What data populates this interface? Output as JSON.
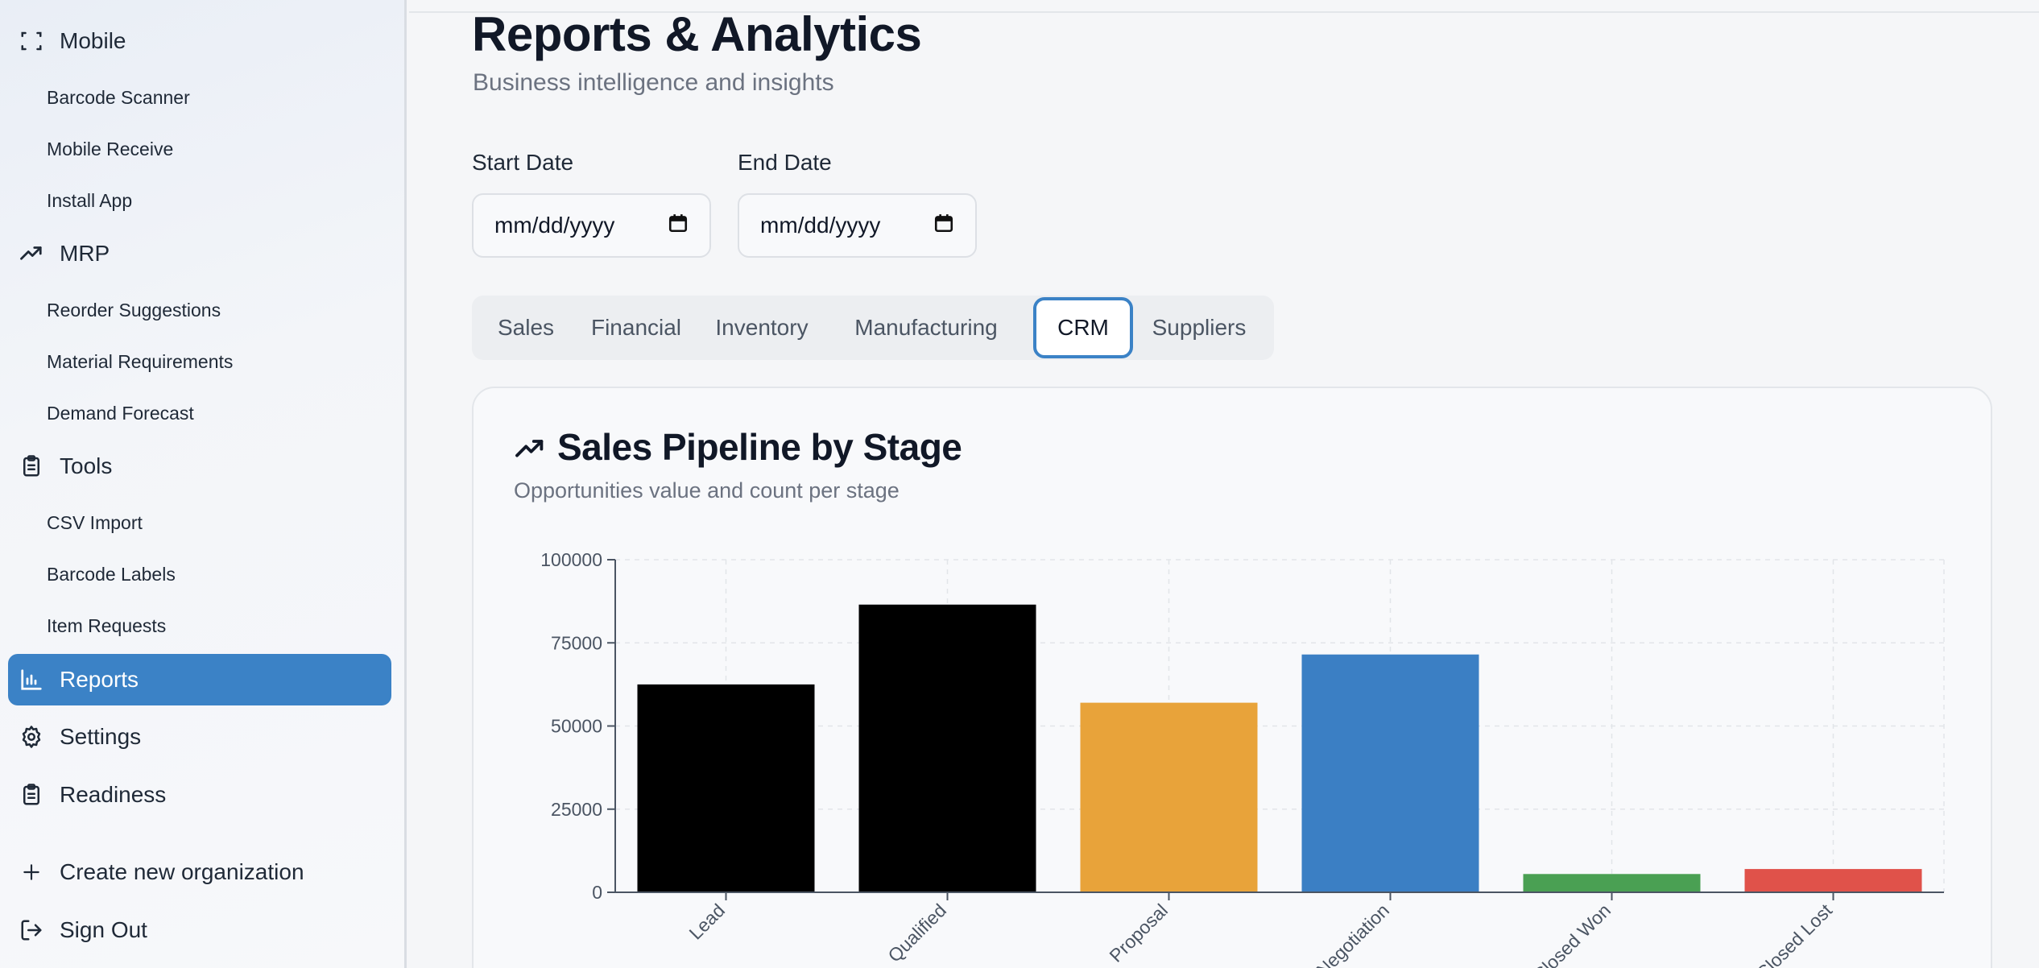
{
  "sidebar": {
    "groups": [
      {
        "label": "Mobile",
        "icon": "scan-icon",
        "items": [
          "Barcode Scanner",
          "Mobile Receive",
          "Install App"
        ]
      },
      {
        "label": "MRP",
        "icon": "trending-up-icon",
        "items": [
          "Reorder Suggestions",
          "Material Requirements",
          "Demand Forecast"
        ]
      },
      {
        "label": "Tools",
        "icon": "clipboard-icon",
        "items": [
          "CSV Import",
          "Barcode Labels",
          "Item Requests"
        ]
      }
    ],
    "reports_label": "Reports",
    "settings_label": "Settings",
    "readiness_label": "Readiness",
    "create_org_label": "Create new organization",
    "sign_out_label": "Sign Out",
    "active_color": "#3b82c6"
  },
  "header": {
    "title": "Reports & Analytics",
    "subtitle": "Business intelligence and insights"
  },
  "filters": {
    "start_label": "Start Date",
    "start_value": "mm/dd/yyyy",
    "end_label": "End Date",
    "end_value": "mm/dd/yyyy"
  },
  "tabs": {
    "items": [
      "Sales",
      "Financial",
      "Inventory",
      "Manufacturing",
      "CRM",
      "Suppliers"
    ],
    "active": "CRM"
  },
  "card": {
    "title": "Sales Pipeline by Stage",
    "subtitle": "Opportunities value and count per stage"
  },
  "chart_data": {
    "type": "bar",
    "categories": [
      "Lead",
      "Qualified",
      "Proposal",
      "Negotiation",
      "Closed Won",
      "Closed Lost"
    ],
    "values": [
      62500,
      86500,
      57000,
      71500,
      5500,
      7000
    ],
    "colors": [
      "#000000",
      "#000000",
      "#e8a33a",
      "#3b7fc4",
      "#4aa053",
      "#e0524a"
    ],
    "ylim": [
      0,
      100000
    ],
    "yticks": [
      0,
      25000,
      50000,
      75000,
      100000
    ],
    "grid": true
  }
}
